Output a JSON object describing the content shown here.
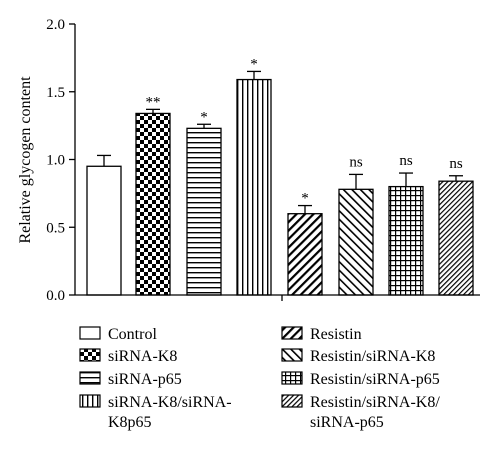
{
  "chart_data": {
    "type": "bar",
    "ylabel": "Relative glycogen content",
    "xlabel": "",
    "ylim": [
      0,
      2.0
    ],
    "yticks": [
      "0.0",
      "0.5",
      "1.0",
      "1.5",
      "2.0"
    ],
    "grid": false,
    "legend_placement": "bottom",
    "categories": [
      "Control",
      "siRNA-K8",
      "siRNA-p65",
      "siRNA-K8/siRNA-K8p65",
      "Resistin",
      "Resistin/siRNA-K8",
      "Resistin/siRNA-p65",
      "Resistin/siRNA-K8/siRNA-p65"
    ],
    "values": [
      0.95,
      1.34,
      1.23,
      1.59,
      0.6,
      0.78,
      0.8,
      0.84
    ],
    "errors": [
      0.08,
      0.03,
      0.03,
      0.06,
      0.06,
      0.11,
      0.1,
      0.04
    ],
    "annotations": [
      "",
      "**",
      "*",
      "*",
      "*",
      "ns",
      "ns",
      "ns"
    ],
    "patterns": [
      "none",
      "checker",
      "hlines",
      "vlines",
      "diag-up",
      "diag-down",
      "grid",
      "diag-dense"
    ],
    "legend": {
      "left": [
        {
          "lines": [
            "Control"
          ],
          "pattern": "none"
        },
        {
          "lines": [
            "siRNA-K8"
          ],
          "pattern": "checker"
        },
        {
          "lines": [
            "siRNA-p65"
          ],
          "pattern": "hlines"
        },
        {
          "lines": [
            "siRNA-K8/siRNA-",
            "K8p65"
          ],
          "pattern": "vlines"
        }
      ],
      "right": [
        {
          "lines": [
            "Resistin"
          ],
          "pattern": "diag-up"
        },
        {
          "lines": [
            "Resistin/siRNA-K8"
          ],
          "pattern": "diag-down"
        },
        {
          "lines": [
            "Resistin/siRNA-p65"
          ],
          "pattern": "grid"
        },
        {
          "lines": [
            "Resistin/siRNA-K8/",
            "siRNA-p65"
          ],
          "pattern": "diag-dense"
        }
      ]
    }
  }
}
